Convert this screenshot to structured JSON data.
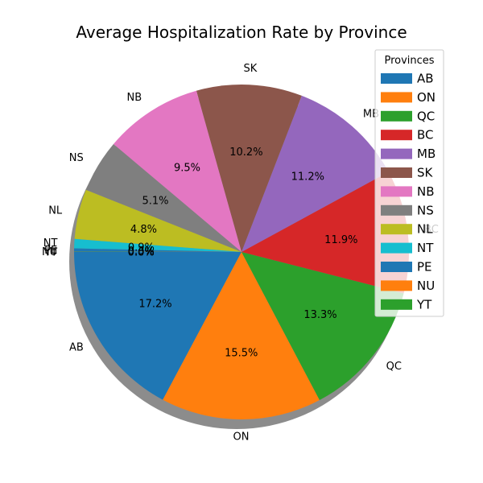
{
  "chart_data": {
    "type": "pie",
    "title": "Average Hospitalization Rate by Province",
    "legend_title": "Provinces",
    "legend_position": "upper-right",
    "start_angle_deg": 180,
    "direction": "counterclockwise",
    "shadow": true,
    "slices": [
      {
        "label": "AB",
        "pct_label": "17.2%",
        "value": 17.2,
        "color": "#1f77b4"
      },
      {
        "label": "ON",
        "pct_label": "15.5%",
        "value": 15.5,
        "color": "#ff7f0e"
      },
      {
        "label": "QC",
        "pct_label": "13.3%",
        "value": 13.3,
        "color": "#2ca02c"
      },
      {
        "label": "BC",
        "pct_label": "11.9%",
        "value": 11.9,
        "color": "#d62728"
      },
      {
        "label": "MB",
        "pct_label": "11.2%",
        "value": 11.2,
        "color": "#9467bd"
      },
      {
        "label": "SK",
        "pct_label": "10.2%",
        "value": 10.2,
        "color": "#8c564b"
      },
      {
        "label": "NB",
        "pct_label": "9.5%",
        "value": 9.5,
        "color": "#e377c2"
      },
      {
        "label": "NS",
        "pct_label": "5.1%",
        "value": 5.1,
        "color": "#7f7f7f"
      },
      {
        "label": "NL",
        "pct_label": "4.8%",
        "value": 4.8,
        "color": "#bcbd22"
      },
      {
        "label": "NT",
        "pct_label": "0.9%",
        "value": 0.9,
        "color": "#17becf"
      },
      {
        "label": "PE",
        "pct_label": "0.3%",
        "value": 0.3,
        "color": "#1f77b4"
      },
      {
        "label": "NU",
        "pct_label": "0.0%",
        "value": 0.02,
        "color": "#ff7f0e"
      },
      {
        "label": "YT",
        "pct_label": "0.0%",
        "value": 0.02,
        "color": "#2ca02c"
      }
    ]
  }
}
